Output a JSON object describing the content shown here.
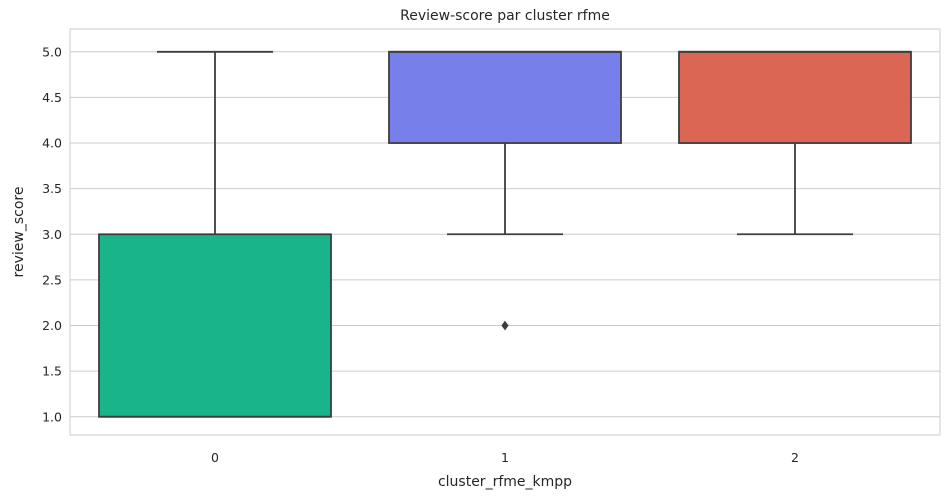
{
  "chart_data": {
    "type": "box",
    "title": "Review-score par cluster rfme",
    "xlabel": "cluster_rfme_kmpp",
    "ylabel": "review_score",
    "ylim": [
      0.8,
      5.25
    ],
    "yticks": [
      "1.0",
      "1.5",
      "2.0",
      "2.5",
      "3.0",
      "3.5",
      "4.0",
      "4.5",
      "5.0"
    ],
    "grid": true,
    "categories": [
      "0",
      "1",
      "2"
    ],
    "boxes": [
      {
        "category": "0",
        "whisker_low": 1.0,
        "q1": 1.0,
        "median": 1.0,
        "q3": 3.0,
        "whisker_high": 5.0,
        "outliers": [],
        "color": "#19B489"
      },
      {
        "category": "1",
        "whisker_low": 3.0,
        "q1": 4.0,
        "median": 5.0,
        "q3": 5.0,
        "whisker_high": 5.0,
        "outliers": [
          2.0
        ],
        "color": "#7780EA"
      },
      {
        "category": "2",
        "whisker_low": 3.0,
        "q1": 4.0,
        "median": 5.0,
        "q3": 5.0,
        "whisker_high": 5.0,
        "outliers": [],
        "color": "#DC6654"
      }
    ]
  }
}
